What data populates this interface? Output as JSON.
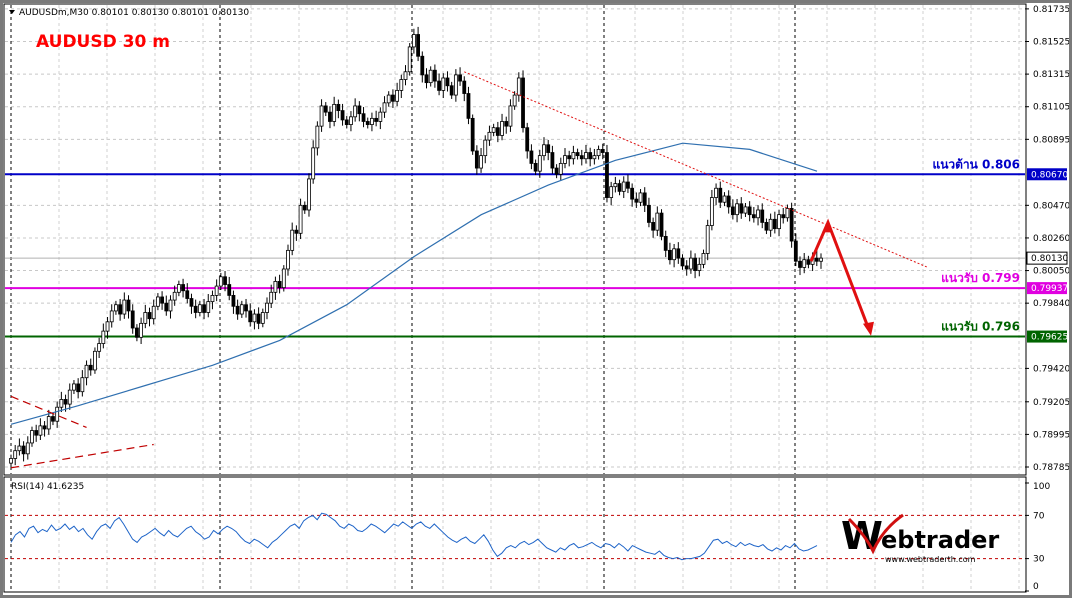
{
  "chart_header": {
    "symbol_line": "AUDUSDm,M30  0.80101 0.80130 0.80101 0.80130",
    "title": "AUDUSD 30 m"
  },
  "rsi_header": "RSI(14) 41.6235",
  "watermark": {
    "brand": "ebtrader",
    "url": "www.webtraderth.com"
  },
  "colors": {
    "resistance": "#0000c8",
    "support_1": "#e000e0",
    "support_2": "#006400",
    "arrow": "#e01010",
    "moving_average": "#3070b0",
    "candles": "#000000",
    "title": "#ff0000",
    "rsi_line": "#1e64c8"
  },
  "chart_data": [
    {
      "type": "candlestick",
      "title": "AUDUSD 30 m",
      "timeframe": "M30",
      "ylim": [
        0.7874,
        0.8176
      ],
      "grid": true,
      "y_ticks": [
        0.81735,
        0.81525,
        0.81315,
        0.81105,
        0.80895,
        0.8047,
        0.8026,
        0.8005,
        0.7984,
        0.7942,
        0.79205,
        0.78995,
        0.78785
      ],
      "y_tick_labels": [
        "0.81735",
        "0.81525",
        "0.81315",
        "0.81105",
        "0.80895",
        "0.80470",
        "0.80260",
        "0.80050",
        "0.79840",
        "0.79420",
        "0.79205",
        "0.78995",
        "0.78785"
      ],
      "price_labels": [
        {
          "value": 0.8067,
          "label": "0.80670",
          "color": "#0000c8"
        },
        {
          "value": 0.8013,
          "label": "0.80130",
          "color": "#ffffff"
        },
        {
          "value": 0.79937,
          "label": "0.79937",
          "color": "#e000e0"
        },
        {
          "value": 0.79625,
          "label": "0.79625",
          "color": "#006400"
        }
      ],
      "horizontal_levels": [
        {
          "name": "resistance",
          "value": 0.8067,
          "label": "แนวต้าน  0.806",
          "color": "#0000c8"
        },
        {
          "name": "support",
          "value": 0.79937,
          "label": "แนวรับ  0.799",
          "color": "#e000e0"
        },
        {
          "name": "support",
          "value": 0.79625,
          "label": "แนวรับ  0.796",
          "color": "#006400"
        }
      ],
      "ohlc_close": [
        0.7884,
        0.7889,
        0.7892,
        0.7887,
        0.7894,
        0.7902,
        0.7899,
        0.7905,
        0.7903,
        0.7911,
        0.7908,
        0.7917,
        0.7922,
        0.7919,
        0.7928,
        0.7932,
        0.7927,
        0.7936,
        0.7944,
        0.7941,
        0.7953,
        0.7958,
        0.7966,
        0.7972,
        0.7979,
        0.7983,
        0.7977,
        0.7986,
        0.7979,
        0.7968,
        0.7962,
        0.7971,
        0.7978,
        0.7974,
        0.7982,
        0.7988,
        0.7984,
        0.7979,
        0.7986,
        0.7991,
        0.7996,
        0.7992,
        0.7987,
        0.7982,
        0.7978,
        0.7983,
        0.7978,
        0.7985,
        0.7989,
        0.7995,
        0.8001,
        0.7996,
        0.7989,
        0.7982,
        0.7977,
        0.7983,
        0.7979,
        0.7972,
        0.7977,
        0.7971,
        0.7978,
        0.7984,
        0.7991,
        0.7998,
        0.7994,
        0.8006,
        0.8018,
        0.8031,
        0.8029,
        0.8047,
        0.8044,
        0.8064,
        0.8084,
        0.8098,
        0.8111,
        0.8107,
        0.8101,
        0.8112,
        0.8108,
        0.8102,
        0.8099,
        0.8104,
        0.8111,
        0.8106,
        0.8101,
        0.8099,
        0.8103,
        0.8101,
        0.8107,
        0.8113,
        0.8118,
        0.8114,
        0.8121,
        0.8128,
        0.8133,
        0.8149,
        0.8157,
        0.8143,
        0.8131,
        0.8126,
        0.8134,
        0.8127,
        0.8121,
        0.8129,
        0.8124,
        0.8118,
        0.8131,
        0.8127,
        0.8119,
        0.8103,
        0.8082,
        0.8071,
        0.8079,
        0.8089,
        0.8094,
        0.8097,
        0.8092,
        0.8101,
        0.8098,
        0.8111,
        0.8118,
        0.8129,
        0.8097,
        0.8082,
        0.8074,
        0.8069,
        0.8079,
        0.8086,
        0.8081,
        0.8071,
        0.8067,
        0.8074,
        0.8079,
        0.8077,
        0.8081,
        0.8079,
        0.8077,
        0.8081,
        0.8077,
        0.8079,
        0.8083,
        0.8081,
        0.8052,
        0.8059,
        0.8061,
        0.8056,
        0.8062,
        0.8058,
        0.8051,
        0.8049,
        0.8055,
        0.8047,
        0.8036,
        0.8031,
        0.8042,
        0.8027,
        0.8018,
        0.8012,
        0.8019,
        0.8013,
        0.8008,
        0.8006,
        0.8013,
        0.8005,
        0.8009,
        0.8016,
        0.8034,
        0.8052,
        0.8058,
        0.8049,
        0.8053,
        0.8046,
        0.8041,
        0.8048,
        0.8042,
        0.8046,
        0.8041,
        0.8039,
        0.8044,
        0.8036,
        0.8031,
        0.8038,
        0.8032,
        0.8041,
        0.8039,
        0.8045,
        0.8024,
        0.8011,
        0.8007,
        0.8012,
        0.8009,
        0.8013,
        0.8011,
        0.8013
      ],
      "moving_average": [
        0.7906,
        0.7918,
        0.7931,
        0.7944,
        0.796,
        0.7983,
        0.8014,
        0.8041,
        0.806,
        0.8076,
        0.8087,
        0.8083,
        0.8069
      ],
      "trendlines": [
        {
          "name": "downtrend",
          "from": [
            108,
            0.8133
          ],
          "to": [
            194,
            0.8007
          ],
          "style": "dotted",
          "color": "#e01010"
        },
        {
          "name": "triangle-upper",
          "from": [
            0,
            0.7924
          ],
          "to": [
            18,
            0.7904
          ],
          "style": "dashed",
          "color": "#c00000"
        },
        {
          "name": "triangle-lower",
          "from": [
            0,
            0.7878
          ],
          "to": [
            34,
            0.7893
          ],
          "style": "dashed",
          "color": "#c00000"
        }
      ],
      "forecast_arrow": {
        "from": 0.8011,
        "peak": 0.8036,
        "target": 0.7963
      }
    },
    {
      "type": "line",
      "title": "RSI(14) 41.6235",
      "ylim": [
        0,
        100
      ],
      "y_ticks": [
        100,
        70,
        30,
        0
      ],
      "y_tick_labels": [
        "100",
        "70",
        "30",
        "0"
      ],
      "levels": [
        70,
        30
      ],
      "current_value": 41.6235,
      "values": [
        45,
        52,
        55,
        50,
        58,
        60,
        54,
        57,
        55,
        61,
        56,
        58,
        62,
        57,
        60,
        55,
        58,
        52,
        48,
        55,
        60,
        62,
        58,
        65,
        68,
        62,
        55,
        48,
        45,
        50,
        52,
        55,
        58,
        54,
        51,
        56,
        52,
        50,
        54,
        58,
        60,
        55,
        52,
        48,
        50,
        56,
        53,
        57,
        60,
        58,
        55,
        50,
        46,
        44,
        48,
        46,
        43,
        40,
        45,
        48,
        52,
        56,
        60,
        62,
        58,
        65,
        68,
        70,
        66,
        72,
        71,
        68,
        65,
        60,
        58,
        62,
        60,
        56,
        55,
        58,
        62,
        60,
        57,
        54,
        58,
        62,
        60,
        64,
        61,
        58,
        62,
        64,
        60,
        58,
        62,
        58,
        54,
        50,
        47,
        45,
        48,
        50,
        46,
        44,
        48,
        52,
        46,
        38,
        32,
        35,
        40,
        42,
        40,
        44,
        46,
        43,
        45,
        48,
        44,
        40,
        38,
        36,
        40,
        38,
        42,
        44,
        40,
        41,
        43,
        45,
        42,
        40,
        44,
        43,
        40,
        44,
        41,
        37,
        42,
        40,
        38,
        36,
        35,
        34,
        37,
        33,
        31,
        30,
        31,
        29,
        30,
        30,
        31,
        32,
        35,
        41,
        47,
        48,
        44,
        46,
        43,
        41,
        45,
        42,
        44,
        42,
        41,
        43,
        39,
        37,
        40,
        38,
        42,
        40,
        44,
        39,
        37,
        38,
        40,
        42
      ]
    }
  ]
}
